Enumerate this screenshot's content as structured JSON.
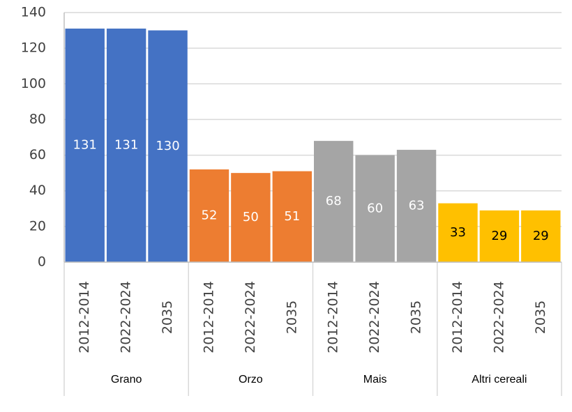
{
  "chart_data": {
    "type": "bar",
    "groups": [
      {
        "name": "Grano",
        "color": "#4472c4",
        "label_color": "#ffffff",
        "categories": [
          "2012-2014",
          "2022-2024",
          "2035"
        ],
        "values": [
          131,
          131,
          130
        ]
      },
      {
        "name": "Orzo",
        "color": "#ed7d31",
        "label_color": "#ffffff",
        "categories": [
          "2012-2014",
          "2022-2024",
          "2035"
        ],
        "values": [
          52,
          50,
          51
        ]
      },
      {
        "name": "Mais",
        "color": "#a5a5a5",
        "label_color": "#ffffff",
        "categories": [
          "2012-2014",
          "2022-2024",
          "2035"
        ],
        "values": [
          68,
          60,
          63
        ]
      },
      {
        "name": "Altri cereali",
        "color": "#ffc000",
        "label_color": "#000000",
        "categories": [
          "2012-2014",
          "2022-2024",
          "2035"
        ],
        "values": [
          33,
          29,
          29
        ]
      }
    ],
    "ylim": [
      0,
      140
    ],
    "yticks": [
      0,
      20,
      40,
      60,
      80,
      100,
      120,
      140
    ],
    "grid": true
  }
}
